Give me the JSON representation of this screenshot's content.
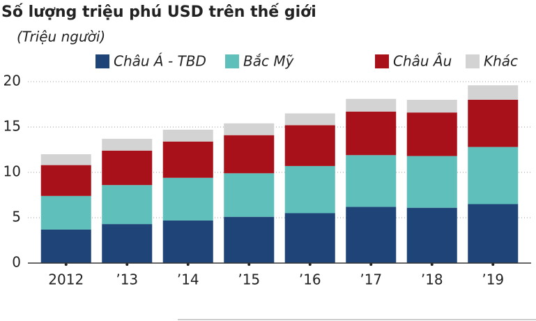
{
  "chart_data": {
    "type": "stacked-bar",
    "title": "Số lượng triệu phú USD trên thế giới",
    "subtitle": "(Triệu người)",
    "categories": [
      "2012",
      "’13",
      "’14",
      "’15",
      "’16",
      "’17",
      "’18",
      "’19"
    ],
    "series": [
      {
        "name": "Châu Á - TBD",
        "color": "#1f4478",
        "values": [
          3.7,
          4.3,
          4.7,
          5.1,
          5.5,
          6.2,
          6.1,
          6.5
        ]
      },
      {
        "name": "Bắc Mỹ",
        "color": "#5fc0bb",
        "values": [
          3.7,
          4.3,
          4.7,
          4.8,
          5.2,
          5.7,
          5.7,
          6.3
        ]
      },
      {
        "name": "Châu Âu",
        "color": "#a8111a",
        "values": [
          3.4,
          3.8,
          4.0,
          4.2,
          4.5,
          4.8,
          4.8,
          5.2
        ]
      },
      {
        "name": "Khác",
        "color": "#d3d3d3",
        "values": [
          1.2,
          1.3,
          1.3,
          1.3,
          1.3,
          1.4,
          1.4,
          1.6
        ]
      }
    ],
    "ylim": [
      0,
      20
    ],
    "yticks": [
      0,
      5,
      10,
      15,
      20
    ],
    "grid": true
  }
}
